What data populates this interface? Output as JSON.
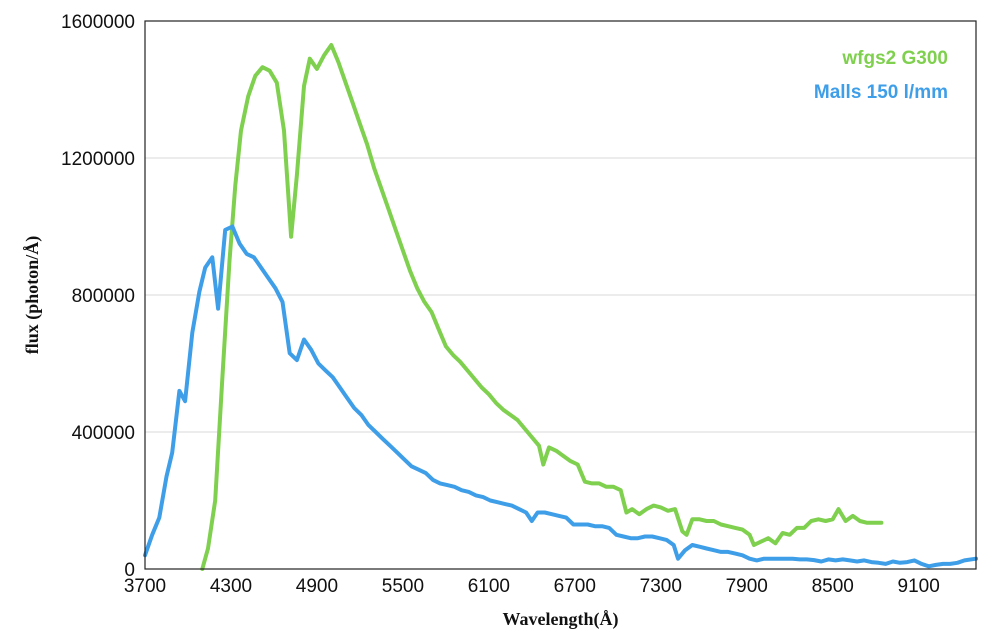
{
  "chart_data": {
    "type": "line",
    "title": "",
    "xlabel": "Wavelength(Å)",
    "ylabel": "flux (photon/Å)",
    "xlim": [
      3700,
      9500
    ],
    "ylim": [
      0,
      1600000
    ],
    "x_ticks": [
      3700,
      4300,
      4900,
      5500,
      6100,
      6700,
      7300,
      7900,
      8500,
      9100
    ],
    "x_tick_labels": [
      "3700",
      "4300",
      "4900",
      "5500",
      "6100",
      "6700",
      "7300",
      "7900",
      "8500",
      "9100"
    ],
    "y_ticks": [
      0,
      400000,
      800000,
      1200000,
      1600000
    ],
    "y_tick_labels": [
      "0",
      "400000",
      "800000",
      "1200000",
      "1600000"
    ],
    "grid": "horizontal",
    "legend_position": "top-right",
    "series": [
      {
        "name": "wfgs2 G300",
        "color": "#7fd04e",
        "points": [
          [
            4100,
            0
          ],
          [
            4140,
            60000
          ],
          [
            4190,
            200000
          ],
          [
            4240,
            560000
          ],
          [
            4290,
            900000
          ],
          [
            4330,
            1120000
          ],
          [
            4370,
            1280000
          ],
          [
            4420,
            1380000
          ],
          [
            4470,
            1440000
          ],
          [
            4520,
            1465000
          ],
          [
            4570,
            1455000
          ],
          [
            4620,
            1420000
          ],
          [
            4670,
            1280000
          ],
          [
            4720,
            970000
          ],
          [
            4760,
            1150000
          ],
          [
            4810,
            1410000
          ],
          [
            4850,
            1490000
          ],
          [
            4900,
            1460000
          ],
          [
            4950,
            1500000
          ],
          [
            5000,
            1530000
          ],
          [
            5050,
            1480000
          ],
          [
            5100,
            1420000
          ],
          [
            5150,
            1360000
          ],
          [
            5200,
            1300000
          ],
          [
            5250,
            1240000
          ],
          [
            5300,
            1170000
          ],
          [
            5350,
            1110000
          ],
          [
            5400,
            1050000
          ],
          [
            5450,
            990000
          ],
          [
            5500,
            930000
          ],
          [
            5550,
            870000
          ],
          [
            5600,
            820000
          ],
          [
            5650,
            780000
          ],
          [
            5700,
            750000
          ],
          [
            5750,
            700000
          ],
          [
            5800,
            650000
          ],
          [
            5850,
            625000
          ],
          [
            5900,
            605000
          ],
          [
            5950,
            580000
          ],
          [
            6000,
            555000
          ],
          [
            6050,
            530000
          ],
          [
            6100,
            510000
          ],
          [
            6150,
            485000
          ],
          [
            6200,
            465000
          ],
          [
            6250,
            450000
          ],
          [
            6300,
            435000
          ],
          [
            6350,
            410000
          ],
          [
            6400,
            385000
          ],
          [
            6450,
            360000
          ],
          [
            6480,
            305000
          ],
          [
            6520,
            355000
          ],
          [
            6570,
            345000
          ],
          [
            6620,
            330000
          ],
          [
            6670,
            315000
          ],
          [
            6720,
            305000
          ],
          [
            6770,
            255000
          ],
          [
            6820,
            250000
          ],
          [
            6870,
            250000
          ],
          [
            6920,
            240000
          ],
          [
            6970,
            240000
          ],
          [
            7020,
            230000
          ],
          [
            7060,
            165000
          ],
          [
            7100,
            175000
          ],
          [
            7150,
            160000
          ],
          [
            7200,
            175000
          ],
          [
            7250,
            185000
          ],
          [
            7300,
            180000
          ],
          [
            7350,
            170000
          ],
          [
            7400,
            175000
          ],
          [
            7450,
            110000
          ],
          [
            7480,
            100000
          ],
          [
            7520,
            145000
          ],
          [
            7570,
            145000
          ],
          [
            7620,
            140000
          ],
          [
            7670,
            140000
          ],
          [
            7720,
            130000
          ],
          [
            7770,
            125000
          ],
          [
            7820,
            120000
          ],
          [
            7870,
            115000
          ],
          [
            7920,
            100000
          ],
          [
            7950,
            70000
          ],
          [
            8000,
            80000
          ],
          [
            8050,
            90000
          ],
          [
            8100,
            75000
          ],
          [
            8150,
            105000
          ],
          [
            8200,
            100000
          ],
          [
            8250,
            120000
          ],
          [
            8300,
            120000
          ],
          [
            8350,
            140000
          ],
          [
            8400,
            145000
          ],
          [
            8450,
            140000
          ],
          [
            8500,
            145000
          ],
          [
            8540,
            175000
          ],
          [
            8590,
            140000
          ],
          [
            8640,
            155000
          ],
          [
            8690,
            140000
          ],
          [
            8740,
            135000
          ],
          [
            8790,
            135000
          ],
          [
            8840,
            135000
          ]
        ]
      },
      {
        "name": "Malls 150 l/mm",
        "color": "#3f9ee8",
        "points": [
          [
            3700,
            40000
          ],
          [
            3750,
            100000
          ],
          [
            3800,
            150000
          ],
          [
            3850,
            270000
          ],
          [
            3890,
            340000
          ],
          [
            3940,
            520000
          ],
          [
            3980,
            490000
          ],
          [
            4030,
            690000
          ],
          [
            4080,
            810000
          ],
          [
            4120,
            880000
          ],
          [
            4170,
            910000
          ],
          [
            4210,
            760000
          ],
          [
            4260,
            990000
          ],
          [
            4310,
            1000000
          ],
          [
            4360,
            950000
          ],
          [
            4410,
            920000
          ],
          [
            4460,
            910000
          ],
          [
            4510,
            880000
          ],
          [
            4560,
            850000
          ],
          [
            4610,
            820000
          ],
          [
            4660,
            780000
          ],
          [
            4710,
            630000
          ],
          [
            4760,
            610000
          ],
          [
            4810,
            670000
          ],
          [
            4860,
            640000
          ],
          [
            4910,
            600000
          ],
          [
            4960,
            580000
          ],
          [
            5010,
            560000
          ],
          [
            5060,
            530000
          ],
          [
            5110,
            500000
          ],
          [
            5160,
            470000
          ],
          [
            5210,
            450000
          ],
          [
            5260,
            420000
          ],
          [
            5310,
            400000
          ],
          [
            5360,
            380000
          ],
          [
            5410,
            360000
          ],
          [
            5460,
            340000
          ],
          [
            5510,
            320000
          ],
          [
            5560,
            300000
          ],
          [
            5610,
            290000
          ],
          [
            5660,
            280000
          ],
          [
            5710,
            260000
          ],
          [
            5760,
            250000
          ],
          [
            5810,
            245000
          ],
          [
            5860,
            240000
          ],
          [
            5910,
            230000
          ],
          [
            5960,
            225000
          ],
          [
            6010,
            215000
          ],
          [
            6060,
            210000
          ],
          [
            6110,
            200000
          ],
          [
            6160,
            195000
          ],
          [
            6210,
            190000
          ],
          [
            6260,
            185000
          ],
          [
            6310,
            175000
          ],
          [
            6360,
            165000
          ],
          [
            6400,
            140000
          ],
          [
            6440,
            165000
          ],
          [
            6490,
            165000
          ],
          [
            6540,
            160000
          ],
          [
            6590,
            155000
          ],
          [
            6640,
            150000
          ],
          [
            6690,
            130000
          ],
          [
            6740,
            130000
          ],
          [
            6790,
            130000
          ],
          [
            6840,
            125000
          ],
          [
            6890,
            125000
          ],
          [
            6940,
            120000
          ],
          [
            6990,
            100000
          ],
          [
            7040,
            95000
          ],
          [
            7090,
            90000
          ],
          [
            7140,
            90000
          ],
          [
            7190,
            95000
          ],
          [
            7240,
            95000
          ],
          [
            7290,
            90000
          ],
          [
            7340,
            85000
          ],
          [
            7390,
            70000
          ],
          [
            7420,
            30000
          ],
          [
            7470,
            55000
          ],
          [
            7520,
            70000
          ],
          [
            7570,
            65000
          ],
          [
            7620,
            60000
          ],
          [
            7670,
            55000
          ],
          [
            7720,
            50000
          ],
          [
            7770,
            50000
          ],
          [
            7820,
            45000
          ],
          [
            7870,
            40000
          ],
          [
            7920,
            30000
          ],
          [
            7970,
            25000
          ],
          [
            8020,
            30000
          ],
          [
            8070,
            30000
          ],
          [
            8120,
            30000
          ],
          [
            8170,
            30000
          ],
          [
            8220,
            30000
          ],
          [
            8270,
            28000
          ],
          [
            8320,
            28000
          ],
          [
            8370,
            26000
          ],
          [
            8420,
            22000
          ],
          [
            8470,
            28000
          ],
          [
            8520,
            25000
          ],
          [
            8570,
            28000
          ],
          [
            8620,
            25000
          ],
          [
            8670,
            22000
          ],
          [
            8720,
            25000
          ],
          [
            8770,
            20000
          ],
          [
            8820,
            18000
          ],
          [
            8870,
            15000
          ],
          [
            8920,
            22000
          ],
          [
            8970,
            18000
          ],
          [
            9020,
            20000
          ],
          [
            9070,
            25000
          ],
          [
            9120,
            15000
          ],
          [
            9170,
            8000
          ],
          [
            9220,
            12000
          ],
          [
            9270,
            15000
          ],
          [
            9320,
            15000
          ],
          [
            9370,
            18000
          ],
          [
            9420,
            25000
          ],
          [
            9500,
            30000
          ]
        ]
      }
    ]
  }
}
